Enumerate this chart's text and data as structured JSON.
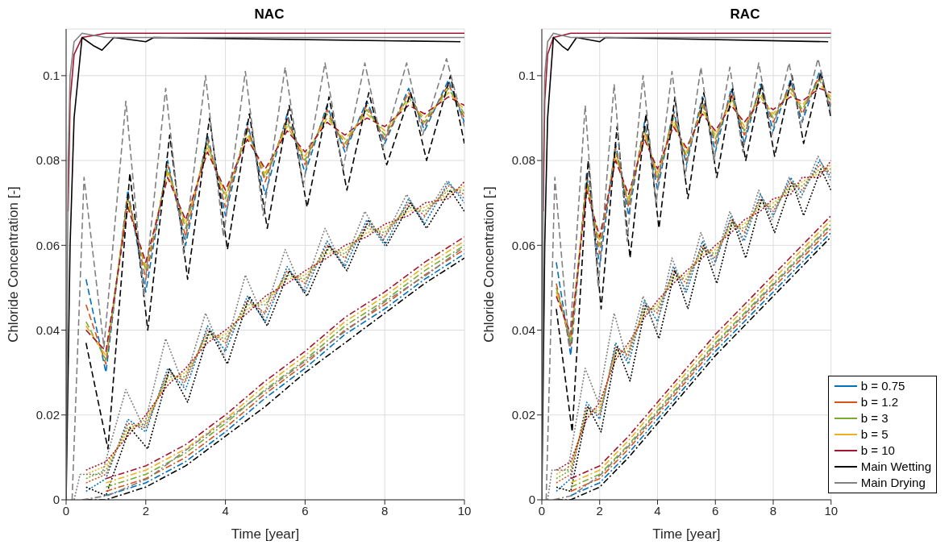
{
  "chart_data": [
    {
      "type": "line",
      "title": "NAC",
      "xlabel": "Time [year]",
      "ylabel": "Chloride Concentration [-]",
      "xlim": [
        0,
        10
      ],
      "xticks": [
        0,
        2,
        4,
        6,
        8,
        10
      ],
      "ylim": [
        0,
        0.111
      ],
      "yticks": [
        0,
        0.02,
        0.04,
        0.06,
        0.08,
        0.1
      ],
      "grid": true,
      "legend": false,
      "marker": "none",
      "series": [
        {
          "color": "#a2142f",
          "line_style": "solid",
          "x": [
            0.05,
            0.1,
            0.2,
            0.4,
            1,
            2,
            10
          ],
          "values": [
            0.068,
            0.094,
            0.105,
            0.109,
            0.11,
            0.11,
            0.11
          ]
        },
        {
          "color": "#000000",
          "line_style": "solid",
          "x": [
            0,
            0.1,
            0.2,
            0.4,
            0.7,
            0.9,
            1.2,
            2,
            2.2,
            9.9
          ],
          "values": [
            0,
            0.06,
            0.09,
            0.109,
            0.107,
            0.106,
            0.109,
            0.108,
            0.109,
            0.108
          ]
        },
        {
          "color": "#808080",
          "line_style": "solid",
          "x": [
            0,
            0.05,
            0.1,
            0.2,
            0.4,
            1,
            2,
            10
          ],
          "values": [
            0,
            0.08,
            0.1,
            0.108,
            0.11,
            0.109,
            0.109,
            0.109
          ]
        },
        {
          "color": "#0072bd",
          "line_style": "dashed",
          "x": [
            0.5,
            1,
            1.55,
            2,
            2.55,
            3,
            3.55,
            4,
            4.55,
            5,
            5.55,
            6,
            6.55,
            7,
            7.55,
            8,
            8.6,
            9,
            9.6,
            10
          ],
          "values": [
            0.052,
            0.03,
            0.073,
            0.049,
            0.08,
            0.06,
            0.086,
            0.067,
            0.089,
            0.072,
            0.091,
            0.077,
            0.093,
            0.082,
            0.094,
            0.084,
            0.097,
            0.087,
            0.099,
            0.089
          ]
        },
        {
          "color": "#d95319",
          "line_style": "dashed",
          "x": [
            0.5,
            1,
            1.55,
            2,
            2.55,
            3,
            3.55,
            4,
            4.55,
            5,
            5.55,
            6,
            6.55,
            7,
            7.55,
            8,
            8.6,
            9,
            9.6,
            10
          ],
          "values": [
            0.046,
            0.032,
            0.072,
            0.052,
            0.079,
            0.062,
            0.085,
            0.069,
            0.088,
            0.075,
            0.09,
            0.079,
            0.092,
            0.083,
            0.093,
            0.085,
            0.096,
            0.088,
            0.098,
            0.09
          ]
        },
        {
          "color": "#77ac30",
          "line_style": "dashed",
          "x": [
            0.5,
            1,
            1.55,
            2,
            2.55,
            3,
            3.55,
            4,
            4.55,
            5,
            5.55,
            6,
            6.55,
            7,
            7.55,
            8,
            8.6,
            9,
            9.6,
            10
          ],
          "values": [
            0.042,
            0.033,
            0.071,
            0.054,
            0.078,
            0.064,
            0.084,
            0.071,
            0.087,
            0.076,
            0.089,
            0.08,
            0.091,
            0.084,
            0.092,
            0.086,
            0.095,
            0.089,
            0.097,
            0.091
          ]
        },
        {
          "color": "#edb120",
          "line_style": "dashed",
          "x": [
            0.5,
            1,
            1.55,
            2,
            2.55,
            3,
            3.55,
            4,
            4.55,
            5,
            5.55,
            6,
            6.55,
            7,
            7.55,
            8,
            8.6,
            9,
            9.6,
            10
          ],
          "values": [
            0.041,
            0.034,
            0.07,
            0.055,
            0.077,
            0.065,
            0.083,
            0.072,
            0.086,
            0.077,
            0.088,
            0.081,
            0.09,
            0.085,
            0.091,
            0.087,
            0.094,
            0.09,
            0.096,
            0.092
          ]
        },
        {
          "color": "#a2142f",
          "line_style": "dashed",
          "x": [
            0.5,
            1,
            1.55,
            2,
            2.55,
            3,
            3.55,
            4,
            4.55,
            5,
            5.55,
            6,
            6.55,
            7,
            7.55,
            8,
            8.6,
            9,
            9.6,
            10
          ],
          "values": [
            0.04,
            0.035,
            0.069,
            0.056,
            0.076,
            0.066,
            0.082,
            0.073,
            0.085,
            0.078,
            0.087,
            0.082,
            0.089,
            0.086,
            0.09,
            0.088,
            0.093,
            0.091,
            0.095,
            0.093
          ]
        },
        {
          "color": "#000000",
          "line_style": "dashed",
          "x": [
            0.5,
            1.05,
            1.6,
            2.05,
            2.6,
            3.05,
            3.6,
            4.05,
            4.6,
            5.05,
            5.6,
            6.05,
            6.6,
            7.05,
            7.6,
            8.05,
            8.65,
            9.05,
            9.65,
            10
          ],
          "values": [
            0.037,
            0.012,
            0.077,
            0.04,
            0.086,
            0.052,
            0.09,
            0.059,
            0.091,
            0.064,
            0.093,
            0.069,
            0.095,
            0.073,
            0.096,
            0.079,
            0.096,
            0.08,
            0.1,
            0.084
          ]
        },
        {
          "color": "#808080",
          "line_style": "dashed",
          "x": [
            0.15,
            0.45,
            0.95,
            1.5,
            1.95,
            2.5,
            2.95,
            3.5,
            3.95,
            4.5,
            4.95,
            5.5,
            5.95,
            6.5,
            6.95,
            7.5,
            7.95,
            8.55,
            8.95,
            9.55,
            10
          ],
          "values": [
            0,
            0.076,
            0.036,
            0.094,
            0.048,
            0.097,
            0.058,
            0.1,
            0.062,
            0.101,
            0.067,
            0.102,
            0.074,
            0.103,
            0.078,
            0.103,
            0.083,
            0.103,
            0.086,
            0.104,
            0.088
          ]
        },
        {
          "color": "#0072bd",
          "line_style": "dotted",
          "x": [
            0.5,
            1,
            1.55,
            2,
            2.55,
            3,
            3.55,
            4,
            4.55,
            5,
            5.55,
            6,
            6.55,
            7,
            7.55,
            8,
            8.6,
            9,
            9.6,
            10
          ],
          "values": [
            0.002,
            0.005,
            0.019,
            0.016,
            0.031,
            0.026,
            0.041,
            0.035,
            0.048,
            0.042,
            0.055,
            0.049,
            0.061,
            0.055,
            0.066,
            0.06,
            0.071,
            0.065,
            0.075,
            0.07
          ]
        },
        {
          "color": "#d95319",
          "line_style": "dotted",
          "x": [
            0.5,
            1,
            1.55,
            2,
            2.55,
            3,
            3.55,
            4,
            4.55,
            5,
            5.55,
            6,
            6.55,
            7,
            7.55,
            8,
            8.6,
            9,
            9.6,
            10
          ],
          "values": [
            0.004,
            0.006,
            0.018,
            0.017,
            0.03,
            0.028,
            0.04,
            0.037,
            0.047,
            0.044,
            0.054,
            0.051,
            0.06,
            0.057,
            0.065,
            0.062,
            0.07,
            0.067,
            0.074,
            0.072
          ]
        },
        {
          "color": "#77ac30",
          "line_style": "dotted",
          "x": [
            0.5,
            1,
            1.55,
            2,
            2.55,
            3,
            3.55,
            4,
            4.55,
            5,
            5.55,
            6,
            6.55,
            7,
            7.55,
            8,
            8.6,
            9,
            9.6,
            10
          ],
          "values": [
            0.005,
            0.007,
            0.017,
            0.018,
            0.029,
            0.029,
            0.039,
            0.038,
            0.046,
            0.046,
            0.053,
            0.052,
            0.059,
            0.058,
            0.064,
            0.063,
            0.069,
            0.068,
            0.073,
            0.073
          ]
        },
        {
          "color": "#edb120",
          "line_style": "dotted",
          "x": [
            0.5,
            1,
            1.55,
            2,
            2.55,
            3,
            3.55,
            4,
            4.55,
            5,
            5.55,
            6,
            6.55,
            7,
            7.55,
            8,
            8.6,
            9,
            9.6,
            10
          ],
          "values": [
            0.006,
            0.008,
            0.016,
            0.019,
            0.028,
            0.03,
            0.038,
            0.039,
            0.045,
            0.047,
            0.052,
            0.053,
            0.058,
            0.059,
            0.063,
            0.064,
            0.068,
            0.069,
            0.072,
            0.074
          ]
        },
        {
          "color": "#a2142f",
          "line_style": "dotted",
          "x": [
            0.5,
            1,
            1.55,
            2,
            2.55,
            3,
            3.55,
            4,
            4.55,
            5,
            5.55,
            6,
            6.55,
            7,
            7.55,
            8,
            8.6,
            9,
            9.6,
            10
          ],
          "values": [
            0.007,
            0.009,
            0.015,
            0.02,
            0.027,
            0.031,
            0.037,
            0.04,
            0.044,
            0.048,
            0.051,
            0.054,
            0.057,
            0.06,
            0.062,
            0.065,
            0.067,
            0.07,
            0.071,
            0.075
          ]
        },
        {
          "color": "#000000",
          "line_style": "dotted",
          "x": [
            0.5,
            1,
            1.6,
            2.05,
            2.6,
            3.05,
            3.6,
            4.05,
            4.6,
            5.05,
            5.6,
            6.05,
            6.6,
            7.05,
            7.6,
            8.05,
            8.65,
            9.05,
            9.65,
            10
          ],
          "values": [
            0.003,
            0.001,
            0.017,
            0.012,
            0.031,
            0.023,
            0.04,
            0.032,
            0.048,
            0.041,
            0.054,
            0.048,
            0.06,
            0.054,
            0.066,
            0.06,
            0.07,
            0.064,
            0.073,
            0.068
          ]
        },
        {
          "color": "#808080",
          "line_style": "dotted",
          "x": [
            0.2,
            0.35,
            0.9,
            1.5,
            1.95,
            2.5,
            2.95,
            3.5,
            3.95,
            4.5,
            4.95,
            5.5,
            5.95,
            6.5,
            6.95,
            7.5,
            7.95,
            8.55,
            8.95,
            9.55,
            10
          ],
          "values": [
            0,
            0.006,
            0.006,
            0.026,
            0.017,
            0.038,
            0.027,
            0.044,
            0.034,
            0.053,
            0.043,
            0.059,
            0.049,
            0.064,
            0.055,
            0.068,
            0.061,
            0.072,
            0.066,
            0.075,
            0.071
          ]
        },
        {
          "color": "#0072bd",
          "line_style": "dashdot",
          "x": [
            1,
            2,
            3,
            4,
            5,
            6,
            7,
            8,
            9,
            10
          ],
          "values": [
            0.001,
            0.004,
            0.009,
            0.016,
            0.024,
            0.031,
            0.039,
            0.045,
            0.052,
            0.058
          ]
        },
        {
          "color": "#d95319",
          "line_style": "dashdot",
          "x": [
            1,
            2,
            3,
            4,
            5,
            6,
            7,
            8,
            9,
            10
          ],
          "values": [
            0.002,
            0.005,
            0.01,
            0.017,
            0.025,
            0.032,
            0.04,
            0.046,
            0.053,
            0.059
          ]
        },
        {
          "color": "#77ac30",
          "line_style": "dashdot",
          "x": [
            1,
            2,
            3,
            4,
            5,
            6,
            7,
            8,
            9,
            10
          ],
          "values": [
            0.003,
            0.006,
            0.011,
            0.018,
            0.026,
            0.033,
            0.041,
            0.047,
            0.054,
            0.06
          ]
        },
        {
          "color": "#edb120",
          "line_style": "dashdot",
          "x": [
            1,
            2,
            3,
            4,
            5,
            6,
            7,
            8,
            9,
            10
          ],
          "values": [
            0.004,
            0.007,
            0.012,
            0.019,
            0.027,
            0.034,
            0.042,
            0.048,
            0.055,
            0.061
          ]
        },
        {
          "color": "#a2142f",
          "line_style": "dashdot",
          "x": [
            1,
            2,
            3,
            4,
            5,
            6,
            7,
            8,
            9,
            10
          ],
          "values": [
            0.005,
            0.008,
            0.013,
            0.02,
            0.028,
            0.035,
            0.043,
            0.049,
            0.056,
            0.062
          ]
        },
        {
          "color": "#000000",
          "line_style": "dashdot",
          "x": [
            0.5,
            1,
            2,
            3,
            4,
            5,
            6,
            7,
            8,
            9,
            10
          ],
          "values": [
            0,
            0,
            0.003,
            0.008,
            0.015,
            0.022,
            0.03,
            0.037,
            0.044,
            0.051,
            0.057
          ]
        },
        {
          "color": "#808080",
          "line_style": "dashdot",
          "x": [
            0.4,
            1.05,
            2.05,
            3.05,
            4.05,
            5.05,
            6.05,
            7.05,
            8.05,
            9.05,
            9.9
          ],
          "values": [
            0,
            0.001,
            0.005,
            0.012,
            0.019,
            0.026,
            0.033,
            0.04,
            0.047,
            0.053,
            0.059
          ]
        }
      ]
    },
    {
      "type": "line",
      "title": "RAC",
      "xlabel": "Time [year]",
      "ylabel": "Chloride Concentration [-]",
      "xlim": [
        0,
        10
      ],
      "xticks": [
        0,
        2,
        4,
        6,
        8,
        10
      ],
      "ylim": [
        0,
        0.111
      ],
      "yticks": [
        0,
        0.02,
        0.04,
        0.06,
        0.08,
        0.1
      ],
      "grid": true,
      "legend": "bottom right",
      "marker": "none",
      "series": [
        {
          "name": "b = 0.75",
          "color": "#0072bd",
          "line_style": "solid"
        },
        {
          "name": "b = 1.2",
          "color": "#d95319",
          "line_style": "solid"
        },
        {
          "name": "b = 3",
          "color": "#77ac30",
          "line_style": "solid"
        },
        {
          "name": "b = 5",
          "color": "#edb120",
          "line_style": "solid"
        },
        {
          "name": "b = 10",
          "color": "#a2142f",
          "line_style": "solid",
          "x": [
            0.05,
            0.1,
            0.2,
            0.4,
            1,
            2,
            10
          ],
          "values": [
            0.068,
            0.094,
            0.105,
            0.109,
            0.11,
            0.11,
            0.11
          ]
        },
        {
          "name": "Main Wetting",
          "color": "#000000",
          "line_style": "solid",
          "x": [
            0,
            0.1,
            0.2,
            0.4,
            0.7,
            0.9,
            1.2,
            2,
            2.2,
            9.9
          ],
          "values": [
            0,
            0.06,
            0.09,
            0.109,
            0.107,
            0.106,
            0.109,
            0.108,
            0.109,
            0.108
          ]
        },
        {
          "name": "Main Drying",
          "color": "#808080",
          "line_style": "solid",
          "x": [
            0,
            0.05,
            0.1,
            0.2,
            0.4,
            1,
            2,
            10
          ],
          "values": [
            0,
            0.08,
            0.1,
            0.108,
            0.11,
            0.109,
            0.109,
            0.109
          ]
        },
        {
          "color": "#0072bd",
          "line_style": "dashed",
          "x": [
            0.5,
            1,
            1.55,
            2,
            2.55,
            3,
            3.55,
            4,
            4.55,
            5,
            5.55,
            6,
            6.55,
            7,
            7.55,
            8,
            8.6,
            9,
            9.6,
            10
          ],
          "values": [
            0.056,
            0.034,
            0.077,
            0.055,
            0.084,
            0.067,
            0.089,
            0.073,
            0.092,
            0.079,
            0.095,
            0.082,
            0.097,
            0.084,
            0.098,
            0.087,
            0.099,
            0.089,
            0.101,
            0.092
          ]
        },
        {
          "color": "#d95319",
          "line_style": "dashed",
          "x": [
            0.5,
            1,
            1.55,
            2,
            2.55,
            3,
            3.55,
            4,
            4.55,
            5,
            5.55,
            6,
            6.55,
            7,
            7.55,
            8,
            8.6,
            9,
            9.6,
            10
          ],
          "values": [
            0.051,
            0.036,
            0.076,
            0.058,
            0.083,
            0.069,
            0.088,
            0.075,
            0.091,
            0.08,
            0.094,
            0.084,
            0.096,
            0.086,
            0.097,
            0.089,
            0.098,
            0.091,
            0.1,
            0.093
          ]
        },
        {
          "color": "#77ac30",
          "line_style": "dashed",
          "x": [
            0.5,
            1,
            1.55,
            2,
            2.55,
            3,
            3.55,
            4,
            4.55,
            5,
            5.55,
            6,
            6.55,
            7,
            7.55,
            8,
            8.6,
            9,
            9.6,
            10
          ],
          "values": [
            0.05,
            0.037,
            0.075,
            0.06,
            0.082,
            0.07,
            0.087,
            0.076,
            0.09,
            0.081,
            0.093,
            0.085,
            0.095,
            0.087,
            0.096,
            0.09,
            0.097,
            0.092,
            0.099,
            0.094
          ]
        },
        {
          "color": "#edb120",
          "line_style": "dashed",
          "x": [
            0.5,
            1,
            1.55,
            2,
            2.55,
            3,
            3.55,
            4,
            4.55,
            5,
            5.55,
            6,
            6.55,
            7,
            7.55,
            8,
            8.6,
            9,
            9.6,
            10
          ],
          "values": [
            0.049,
            0.038,
            0.074,
            0.061,
            0.081,
            0.071,
            0.086,
            0.077,
            0.089,
            0.082,
            0.092,
            0.086,
            0.094,
            0.088,
            0.095,
            0.091,
            0.096,
            0.093,
            0.098,
            0.095
          ]
        },
        {
          "color": "#a2142f",
          "line_style": "dashed",
          "x": [
            0.5,
            1,
            1.55,
            2,
            2.55,
            3,
            3.55,
            4,
            4.55,
            5,
            5.55,
            6,
            6.55,
            7,
            7.55,
            8,
            8.6,
            9,
            9.6,
            10
          ],
          "values": [
            0.048,
            0.039,
            0.073,
            0.062,
            0.08,
            0.072,
            0.085,
            0.078,
            0.088,
            0.083,
            0.091,
            0.087,
            0.093,
            0.089,
            0.094,
            0.092,
            0.095,
            0.094,
            0.097,
            0.096
          ]
        },
        {
          "color": "#000000",
          "line_style": "dashed",
          "x": [
            0.5,
            1.05,
            1.6,
            2.05,
            2.6,
            3.05,
            3.6,
            4.05,
            4.6,
            5.05,
            5.6,
            6.05,
            6.6,
            7.05,
            7.6,
            8.05,
            8.65,
            9.05,
            9.65,
            10
          ],
          "values": [
            0.045,
            0.016,
            0.08,
            0.045,
            0.088,
            0.057,
            0.091,
            0.064,
            0.095,
            0.071,
            0.096,
            0.076,
            0.097,
            0.08,
            0.098,
            0.081,
            0.1,
            0.084,
            0.101,
            0.09
          ]
        },
        {
          "color": "#808080",
          "line_style": "dashed",
          "x": [
            0.15,
            0.45,
            0.95,
            1.5,
            1.95,
            2.5,
            2.95,
            3.5,
            3.95,
            4.5,
            4.95,
            5.5,
            5.95,
            6.5,
            6.95,
            7.5,
            7.95,
            8.55,
            8.95,
            9.55,
            10
          ],
          "values": [
            0,
            0.076,
            0.036,
            0.093,
            0.05,
            0.098,
            0.061,
            0.1,
            0.07,
            0.101,
            0.076,
            0.102,
            0.08,
            0.102,
            0.082,
            0.103,
            0.086,
            0.103,
            0.088,
            0.104,
            0.091
          ]
        },
        {
          "color": "#0072bd",
          "line_style": "dotted",
          "x": [
            0.5,
            1,
            1.55,
            2,
            2.55,
            3,
            3.55,
            4,
            4.55,
            5,
            5.55,
            6,
            6.55,
            7,
            7.55,
            8,
            8.6,
            9,
            9.6,
            10
          ],
          "values": [
            0.002,
            0.005,
            0.023,
            0.019,
            0.037,
            0.032,
            0.047,
            0.042,
            0.055,
            0.049,
            0.061,
            0.056,
            0.067,
            0.061,
            0.072,
            0.067,
            0.076,
            0.072,
            0.08,
            0.076
          ]
        },
        {
          "color": "#d95319",
          "line_style": "dotted",
          "x": [
            0.5,
            1,
            1.55,
            2,
            2.55,
            3,
            3.55,
            4,
            4.55,
            5,
            5.55,
            6,
            6.55,
            7,
            7.55,
            8,
            8.6,
            9,
            9.6,
            10
          ],
          "values": [
            0.004,
            0.006,
            0.022,
            0.02,
            0.036,
            0.034,
            0.046,
            0.044,
            0.054,
            0.051,
            0.06,
            0.057,
            0.066,
            0.063,
            0.071,
            0.068,
            0.075,
            0.073,
            0.079,
            0.077
          ]
        },
        {
          "color": "#77ac30",
          "line_style": "dotted",
          "x": [
            0.5,
            1,
            1.55,
            2,
            2.55,
            3,
            3.55,
            4,
            4.55,
            5,
            5.55,
            6,
            6.55,
            7,
            7.55,
            8,
            8.6,
            9,
            9.6,
            10
          ],
          "values": [
            0.005,
            0.007,
            0.021,
            0.021,
            0.035,
            0.035,
            0.045,
            0.045,
            0.053,
            0.052,
            0.059,
            0.058,
            0.065,
            0.064,
            0.07,
            0.069,
            0.074,
            0.074,
            0.078,
            0.078
          ]
        },
        {
          "color": "#edb120",
          "line_style": "dotted",
          "x": [
            0.5,
            1,
            1.55,
            2,
            2.55,
            3,
            3.55,
            4,
            4.55,
            5,
            5.55,
            6,
            6.55,
            7,
            7.55,
            8,
            8.6,
            9,
            9.6,
            10
          ],
          "values": [
            0.006,
            0.008,
            0.02,
            0.022,
            0.034,
            0.036,
            0.044,
            0.046,
            0.052,
            0.053,
            0.058,
            0.059,
            0.064,
            0.065,
            0.069,
            0.07,
            0.073,
            0.075,
            0.077,
            0.079
          ]
        },
        {
          "color": "#a2142f",
          "line_style": "dotted",
          "x": [
            0.5,
            1,
            1.55,
            2,
            2.55,
            3,
            3.55,
            4,
            4.55,
            5,
            5.55,
            6,
            6.55,
            7,
            7.55,
            8,
            8.6,
            9,
            9.6,
            10
          ],
          "values": [
            0.007,
            0.009,
            0.019,
            0.023,
            0.033,
            0.037,
            0.043,
            0.047,
            0.051,
            0.054,
            0.057,
            0.06,
            0.063,
            0.066,
            0.068,
            0.071,
            0.072,
            0.076,
            0.076,
            0.08
          ]
        },
        {
          "color": "#000000",
          "line_style": "dotted",
          "x": [
            0.5,
            1,
            1.6,
            2.05,
            2.6,
            3.05,
            3.6,
            4.05,
            4.6,
            5.05,
            5.6,
            6.05,
            6.6,
            7.05,
            7.6,
            8.05,
            8.65,
            9.05,
            9.65,
            10
          ],
          "values": [
            0.003,
            0.002,
            0.022,
            0.016,
            0.036,
            0.028,
            0.046,
            0.038,
            0.054,
            0.045,
            0.06,
            0.051,
            0.066,
            0.057,
            0.071,
            0.063,
            0.075,
            0.067,
            0.078,
            0.073
          ]
        },
        {
          "color": "#808080",
          "line_style": "dotted",
          "x": [
            0.2,
            0.35,
            0.9,
            1.5,
            1.95,
            2.5,
            2.95,
            3.5,
            3.95,
            4.5,
            4.95,
            5.5,
            5.95,
            6.5,
            6.95,
            7.5,
            7.95,
            8.55,
            8.95,
            9.55,
            10
          ],
          "values": [
            0,
            0.007,
            0.007,
            0.031,
            0.023,
            0.044,
            0.033,
            0.048,
            0.04,
            0.057,
            0.049,
            0.063,
            0.055,
            0.068,
            0.061,
            0.073,
            0.066,
            0.076,
            0.071,
            0.081,
            0.075
          ]
        },
        {
          "color": "#0072bd",
          "line_style": "dashdot",
          "x": [
            1,
            2,
            3,
            4,
            5,
            6,
            7,
            8,
            9,
            10
          ],
          "values": [
            0.001,
            0.004,
            0.011,
            0.019,
            0.027,
            0.035,
            0.042,
            0.049,
            0.056,
            0.063
          ]
        },
        {
          "color": "#d95319",
          "line_style": "dashdot",
          "x": [
            1,
            2,
            3,
            4,
            5,
            6,
            7,
            8,
            9,
            10
          ],
          "values": [
            0.002,
            0.005,
            0.012,
            0.02,
            0.028,
            0.036,
            0.043,
            0.05,
            0.057,
            0.064
          ]
        },
        {
          "color": "#77ac30",
          "line_style": "dashdot",
          "x": [
            1,
            2,
            3,
            4,
            5,
            6,
            7,
            8,
            9,
            10
          ],
          "values": [
            0.003,
            0.006,
            0.013,
            0.021,
            0.029,
            0.037,
            0.044,
            0.051,
            0.058,
            0.065
          ]
        },
        {
          "color": "#edb120",
          "line_style": "dashdot",
          "x": [
            1,
            2,
            3,
            4,
            5,
            6,
            7,
            8,
            9,
            10
          ],
          "values": [
            0.004,
            0.007,
            0.014,
            0.022,
            0.03,
            0.038,
            0.045,
            0.052,
            0.059,
            0.066
          ]
        },
        {
          "color": "#a2142f",
          "line_style": "dashdot",
          "x": [
            1,
            2,
            3,
            4,
            5,
            6,
            7,
            8,
            9,
            10
          ],
          "values": [
            0.005,
            0.008,
            0.015,
            0.023,
            0.031,
            0.039,
            0.046,
            0.053,
            0.06,
            0.067
          ]
        },
        {
          "color": "#000000",
          "line_style": "dashdot",
          "x": [
            0.5,
            1,
            2,
            3,
            4,
            5,
            6,
            7,
            8,
            9,
            10
          ],
          "values": [
            0,
            0,
            0.003,
            0.01,
            0.018,
            0.026,
            0.034,
            0.041,
            0.048,
            0.055,
            0.062
          ]
        },
        {
          "color": "#808080",
          "line_style": "dashdot",
          "x": [
            0.4,
            1.05,
            2.05,
            3.05,
            4.05,
            5.05,
            6.05,
            7.05,
            8.05,
            9.05,
            9.9
          ],
          "values": [
            0,
            0.001,
            0.006,
            0.013,
            0.021,
            0.029,
            0.037,
            0.044,
            0.051,
            0.058,
            0.064
          ]
        }
      ]
    }
  ]
}
